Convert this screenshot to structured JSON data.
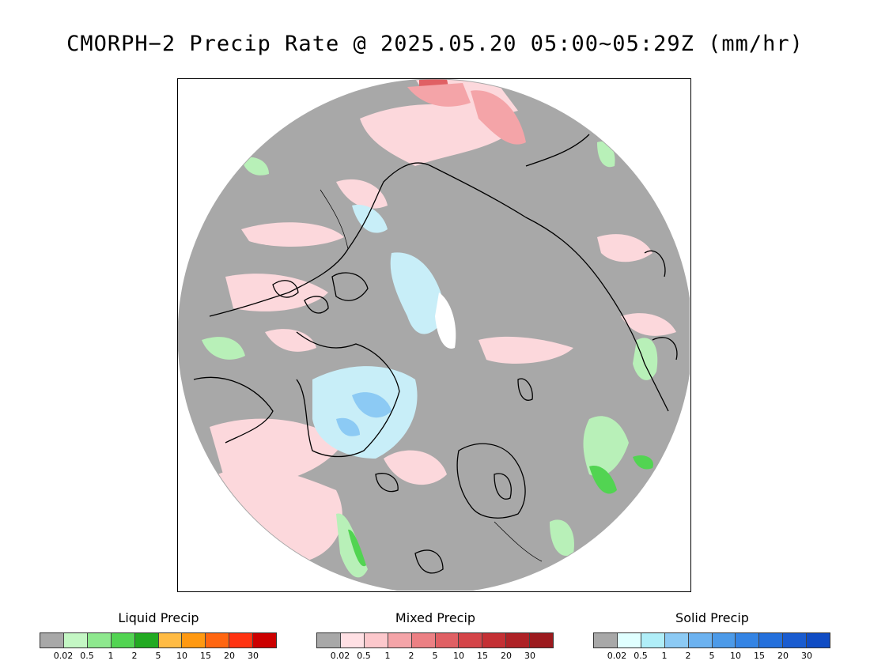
{
  "title": "CMORPH−2 Precip Rate @ 2025.05.20 05:00~05:29Z (mm/hr)",
  "map": {
    "projection": "north polar stereographic",
    "background_color": "#a8a8a8",
    "coastline_color": "#000000"
  },
  "legends": [
    {
      "title": "Liquid Precip",
      "colors": [
        "#a8a8a8",
        "#c4f7c4",
        "#8ee88e",
        "#52d452",
        "#22aa22",
        "#ffbb44",
        "#ff9911",
        "#ff6611",
        "#ff3311",
        "#cc0000"
      ],
      "ticks": [
        "0.02",
        "0.5",
        "1",
        "2",
        "5",
        "10",
        "15",
        "20",
        "30"
      ]
    },
    {
      "title": "Mixed Precip",
      "colors": [
        "#a8a8a8",
        "#ffe0e4",
        "#fcc8cc",
        "#f4a4a8",
        "#ec8084",
        "#e06064",
        "#d44448",
        "#c43034",
        "#ae2226",
        "#9c1a1e"
      ],
      "ticks": [
        "0.02",
        "0.5",
        "1",
        "2",
        "5",
        "10",
        "15",
        "20",
        "30"
      ]
    },
    {
      "title": "Solid Precip",
      "colors": [
        "#a8a8a8",
        "#e0ffff",
        "#b0eef8",
        "#8ccaf4",
        "#6cb2f0",
        "#4c9ae8",
        "#3484e4",
        "#2470dc",
        "#1a5cd0",
        "#104cc4"
      ],
      "ticks": [
        "0.02",
        "0.5",
        "1",
        "2",
        "5",
        "10",
        "15",
        "20",
        "30"
      ]
    }
  ]
}
